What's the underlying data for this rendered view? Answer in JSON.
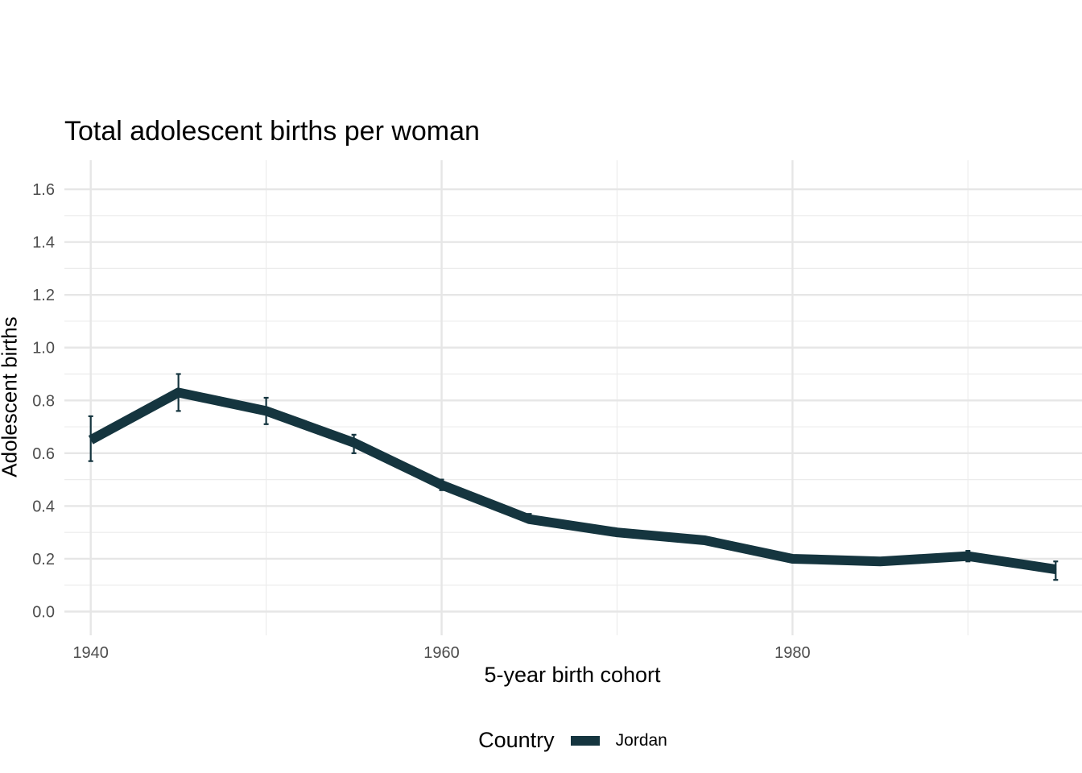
{
  "chart_data": {
    "type": "line",
    "title": "Total adolescent births per woman",
    "xlabel": "5-year birth cohort",
    "ylabel": "Adolescent births",
    "xlim": [
      1938.5,
      1996.5
    ],
    "ylim": [
      -0.09,
      1.71
    ],
    "x_ticks": [
      1940,
      1960,
      1980
    ],
    "x_tick_labels": [
      "1940",
      "1960",
      "1980"
    ],
    "x_minor_ticks": [
      1950,
      1970,
      1990
    ],
    "y_ticks": [
      0.0,
      0.2,
      0.4,
      0.6,
      0.8,
      1.0,
      1.2,
      1.4,
      1.6
    ],
    "y_tick_labels": [
      "0.0",
      "0.2",
      "0.4",
      "0.6",
      "0.8",
      "1.0",
      "1.2",
      "1.4",
      "1.6"
    ],
    "y_minor_ticks": [
      0.1,
      0.3,
      0.5,
      0.7,
      0.9,
      1.1,
      1.3,
      1.5
    ],
    "grid": true,
    "legend": {
      "title": "Country",
      "position": "bottom"
    },
    "x": [
      1940,
      1945,
      1950,
      1955,
      1960,
      1965,
      1970,
      1975,
      1980,
      1985,
      1990,
      1995
    ],
    "series": [
      {
        "name": "Jordan",
        "color": "#15353f",
        "values": [
          0.65,
          0.83,
          0.76,
          0.64,
          0.48,
          0.35,
          0.3,
          0.27,
          0.2,
          0.19,
          0.21,
          0.16
        ],
        "lower": [
          0.57,
          0.76,
          0.71,
          0.6,
          0.46,
          0.34,
          0.29,
          0.27,
          0.19,
          0.19,
          0.19,
          0.12
        ],
        "upper": [
          0.74,
          0.9,
          0.81,
          0.67,
          0.5,
          0.37,
          0.31,
          0.28,
          0.2,
          0.2,
          0.23,
          0.19
        ]
      }
    ]
  }
}
